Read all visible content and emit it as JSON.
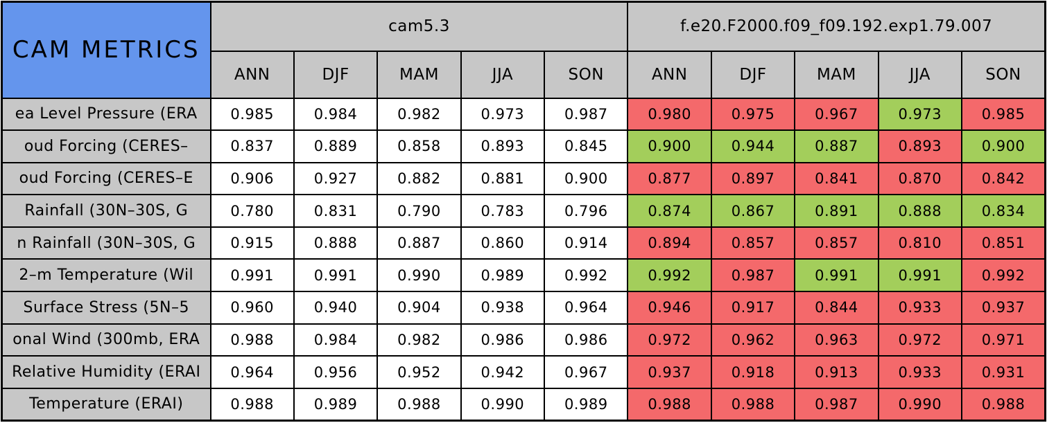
{
  "colors": {
    "corner_blue": "#6495ED",
    "header_gray": "#C7C7C7",
    "better_green": "#A3CE5B",
    "worse_red": "#F4696B",
    "neutral_white": "#FFFFFF",
    "border_black": "#000000"
  },
  "table": {
    "corner_label": "CAM METRICS",
    "groups": [
      {
        "label": "cam5.3"
      },
      {
        "label": "f.e20.F2000.f09_f09.192.exp1.79.007"
      }
    ],
    "season_headers": [
      "ANN",
      "DJF",
      "MAM",
      "JJA",
      "SON"
    ],
    "rows": [
      {
        "label": "ea Level Pressure (ERA",
        "cam53": [
          "0.985",
          "0.984",
          "0.982",
          "0.973",
          "0.987"
        ],
        "exp": [
          {
            "value": "0.980",
            "status": "worse"
          },
          {
            "value": "0.975",
            "status": "worse"
          },
          {
            "value": "0.967",
            "status": "worse"
          },
          {
            "value": "0.973",
            "status": "better"
          },
          {
            "value": "0.985",
            "status": "worse"
          }
        ]
      },
      {
        "label": "oud Forcing (CERES–",
        "cam53": [
          "0.837",
          "0.889",
          "0.858",
          "0.893",
          "0.845"
        ],
        "exp": [
          {
            "value": "0.900",
            "status": "better"
          },
          {
            "value": "0.944",
            "status": "better"
          },
          {
            "value": "0.887",
            "status": "better"
          },
          {
            "value": "0.893",
            "status": "worse"
          },
          {
            "value": "0.900",
            "status": "better"
          }
        ]
      },
      {
        "label": "oud Forcing (CERES–E",
        "cam53": [
          "0.906",
          "0.927",
          "0.882",
          "0.881",
          "0.900"
        ],
        "exp": [
          {
            "value": "0.877",
            "status": "worse"
          },
          {
            "value": "0.897",
            "status": "worse"
          },
          {
            "value": "0.841",
            "status": "worse"
          },
          {
            "value": "0.870",
            "status": "worse"
          },
          {
            "value": "0.842",
            "status": "worse"
          }
        ]
      },
      {
        "label": "Rainfall (30N–30S, G",
        "cam53": [
          "0.780",
          "0.831",
          "0.790",
          "0.783",
          "0.796"
        ],
        "exp": [
          {
            "value": "0.874",
            "status": "better"
          },
          {
            "value": "0.867",
            "status": "better"
          },
          {
            "value": "0.891",
            "status": "better"
          },
          {
            "value": "0.888",
            "status": "better"
          },
          {
            "value": "0.834",
            "status": "better"
          }
        ]
      },
      {
        "label": "n Rainfall (30N–30S, G",
        "cam53": [
          "0.915",
          "0.888",
          "0.887",
          "0.860",
          "0.914"
        ],
        "exp": [
          {
            "value": "0.894",
            "status": "worse"
          },
          {
            "value": "0.857",
            "status": "worse"
          },
          {
            "value": "0.857",
            "status": "worse"
          },
          {
            "value": "0.810",
            "status": "worse"
          },
          {
            "value": "0.851",
            "status": "worse"
          }
        ]
      },
      {
        "label": "2–m Temperature (Wil",
        "cam53": [
          "0.991",
          "0.991",
          "0.990",
          "0.989",
          "0.992"
        ],
        "exp": [
          {
            "value": "0.992",
            "status": "better"
          },
          {
            "value": "0.987",
            "status": "worse"
          },
          {
            "value": "0.991",
            "status": "better"
          },
          {
            "value": "0.991",
            "status": "better"
          },
          {
            "value": "0.992",
            "status": "worse"
          }
        ]
      },
      {
        "label": "Surface Stress (5N–5",
        "cam53": [
          "0.960",
          "0.940",
          "0.904",
          "0.938",
          "0.964"
        ],
        "exp": [
          {
            "value": "0.946",
            "status": "worse"
          },
          {
            "value": "0.917",
            "status": "worse"
          },
          {
            "value": "0.844",
            "status": "worse"
          },
          {
            "value": "0.933",
            "status": "worse"
          },
          {
            "value": "0.937",
            "status": "worse"
          }
        ]
      },
      {
        "label": "onal Wind (300mb, ERA",
        "cam53": [
          "0.988",
          "0.984",
          "0.982",
          "0.986",
          "0.986"
        ],
        "exp": [
          {
            "value": "0.972",
            "status": "worse"
          },
          {
            "value": "0.962",
            "status": "worse"
          },
          {
            "value": "0.963",
            "status": "worse"
          },
          {
            "value": "0.972",
            "status": "worse"
          },
          {
            "value": "0.971",
            "status": "worse"
          }
        ]
      },
      {
        "label": "Relative Humidity (ERAI",
        "cam53": [
          "0.964",
          "0.956",
          "0.952",
          "0.942",
          "0.967"
        ],
        "exp": [
          {
            "value": "0.937",
            "status": "worse"
          },
          {
            "value": "0.918",
            "status": "worse"
          },
          {
            "value": "0.913",
            "status": "worse"
          },
          {
            "value": "0.933",
            "status": "worse"
          },
          {
            "value": "0.931",
            "status": "worse"
          }
        ]
      },
      {
        "label": "Temperature (ERAI)",
        "cam53": [
          "0.988",
          "0.989",
          "0.988",
          "0.990",
          "0.989"
        ],
        "exp": [
          {
            "value": "0.988",
            "status": "worse"
          },
          {
            "value": "0.988",
            "status": "worse"
          },
          {
            "value": "0.987",
            "status": "worse"
          },
          {
            "value": "0.990",
            "status": "worse"
          },
          {
            "value": "0.988",
            "status": "worse"
          }
        ]
      }
    ]
  },
  "chart_data": {
    "type": "table",
    "title": "CAM METRICS",
    "column_groups": [
      "cam5.3",
      "f.e20.F2000.f09_f09.192.exp1.79.007"
    ],
    "seasons": [
      "ANN",
      "DJF",
      "MAM",
      "JJA",
      "SON"
    ],
    "row_labels": [
      "ea Level Pressure (ERA",
      "oud Forcing (CERES–",
      "oud Forcing (CERES–E",
      "Rainfall (30N–30S, G",
      "n Rainfall (30N–30S, G",
      "2–m Temperature (Wil",
      "Surface Stress (5N–5",
      "onal Wind (300mb, ERA",
      "Relative Humidity (ERAI",
      "Temperature (ERAI)"
    ],
    "series": [
      {
        "name": "cam5.3",
        "values": [
          [
            0.985,
            0.984,
            0.982,
            0.973,
            0.987
          ],
          [
            0.837,
            0.889,
            0.858,
            0.893,
            0.845
          ],
          [
            0.906,
            0.927,
            0.882,
            0.881,
            0.9
          ],
          [
            0.78,
            0.831,
            0.79,
            0.783,
            0.796
          ],
          [
            0.915,
            0.888,
            0.887,
            0.86,
            0.914
          ],
          [
            0.991,
            0.991,
            0.99,
            0.989,
            0.992
          ],
          [
            0.96,
            0.94,
            0.904,
            0.938,
            0.964
          ],
          [
            0.988,
            0.984,
            0.982,
            0.986,
            0.986
          ],
          [
            0.964,
            0.956,
            0.952,
            0.942,
            0.967
          ],
          [
            0.988,
            0.989,
            0.988,
            0.99,
            0.989
          ]
        ]
      },
      {
        "name": "f.e20.F2000.f09_f09.192.exp1.79.007",
        "values": [
          [
            0.98,
            0.975,
            0.967,
            0.973,
            0.985
          ],
          [
            0.9,
            0.944,
            0.887,
            0.893,
            0.9
          ],
          [
            0.877,
            0.897,
            0.841,
            0.87,
            0.842
          ],
          [
            0.874,
            0.867,
            0.891,
            0.888,
            0.834
          ],
          [
            0.894,
            0.857,
            0.857,
            0.81,
            0.851
          ],
          [
            0.992,
            0.987,
            0.991,
            0.991,
            0.992
          ],
          [
            0.946,
            0.917,
            0.844,
            0.933,
            0.937
          ],
          [
            0.972,
            0.962,
            0.963,
            0.972,
            0.971
          ],
          [
            0.937,
            0.918,
            0.913,
            0.933,
            0.931
          ],
          [
            0.988,
            0.988,
            0.987,
            0.99,
            0.988
          ]
        ],
        "cell_status": [
          [
            "worse",
            "worse",
            "worse",
            "better",
            "worse"
          ],
          [
            "better",
            "better",
            "better",
            "worse",
            "better"
          ],
          [
            "worse",
            "worse",
            "worse",
            "worse",
            "worse"
          ],
          [
            "better",
            "better",
            "better",
            "better",
            "better"
          ],
          [
            "worse",
            "worse",
            "worse",
            "worse",
            "worse"
          ],
          [
            "better",
            "worse",
            "better",
            "better",
            "worse"
          ],
          [
            "worse",
            "worse",
            "worse",
            "worse",
            "worse"
          ],
          [
            "worse",
            "worse",
            "worse",
            "worse",
            "worse"
          ],
          [
            "worse",
            "worse",
            "worse",
            "worse",
            "worse"
          ],
          [
            "worse",
            "worse",
            "worse",
            "worse",
            "worse"
          ]
        ]
      }
    ],
    "layout": {
      "green_means": "cell colored green",
      "red_means": "cell colored red",
      "grid": "black 2px cell borders, 3px outer border"
    }
  }
}
